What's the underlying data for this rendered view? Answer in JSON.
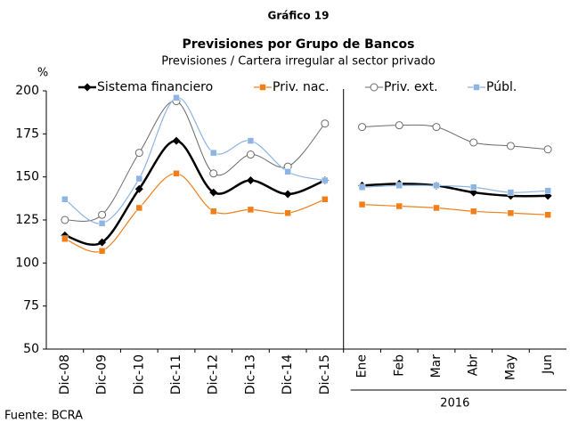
{
  "chart_data": {
    "type": "line",
    "heading": "Gráfico 19",
    "title": "Previsiones por Grupo de Bancos",
    "subtitle": "Previsiones / Cartera irregular al sector privado",
    "y_label": "%",
    "source": "Fuente: BCRA",
    "categories": [
      "Dic-08",
      "Dic-09",
      "Dic-10",
      "Dic-11",
      "Dic-12",
      "Dic-13",
      "Dic-14",
      "Dic-15",
      "Ene",
      "Feb",
      "Mar",
      "Abr",
      "May",
      "Jun"
    ],
    "group_label": "2016",
    "group_start": 8,
    "ylim": [
      50,
      200
    ],
    "yticks": [
      50,
      75,
      100,
      125,
      150,
      175,
      200
    ],
    "grid": false,
    "series": [
      {
        "name": "Sistema financiero",
        "color": "#000000",
        "marker": "diamond",
        "width": 2.5,
        "values": [
          116,
          112,
          143,
          171,
          141,
          148,
          140,
          148,
          145,
          146,
          145,
          141,
          139,
          139
        ]
      },
      {
        "name": "Priv. nac.",
        "color": "#f07f1a",
        "marker": "square",
        "width": 1.2,
        "values": [
          114,
          107,
          132,
          152,
          130,
          131,
          129,
          137,
          134,
          133,
          132,
          130,
          129,
          128
        ]
      },
      {
        "name": "Priv. ext.",
        "color": "#6b6b6b",
        "marker": "circle",
        "width": 1,
        "values": [
          125,
          128,
          164,
          194,
          152,
          163,
          156,
          181,
          179,
          180,
          179,
          170,
          168,
          166
        ]
      },
      {
        "name": "Públ.",
        "color": "#8db4e2",
        "marker": "square",
        "width": 1.2,
        "values": [
          137,
          123,
          149,
          196,
          164,
          171,
          153,
          148,
          144,
          145,
          145,
          144,
          141,
          142
        ]
      }
    ]
  }
}
